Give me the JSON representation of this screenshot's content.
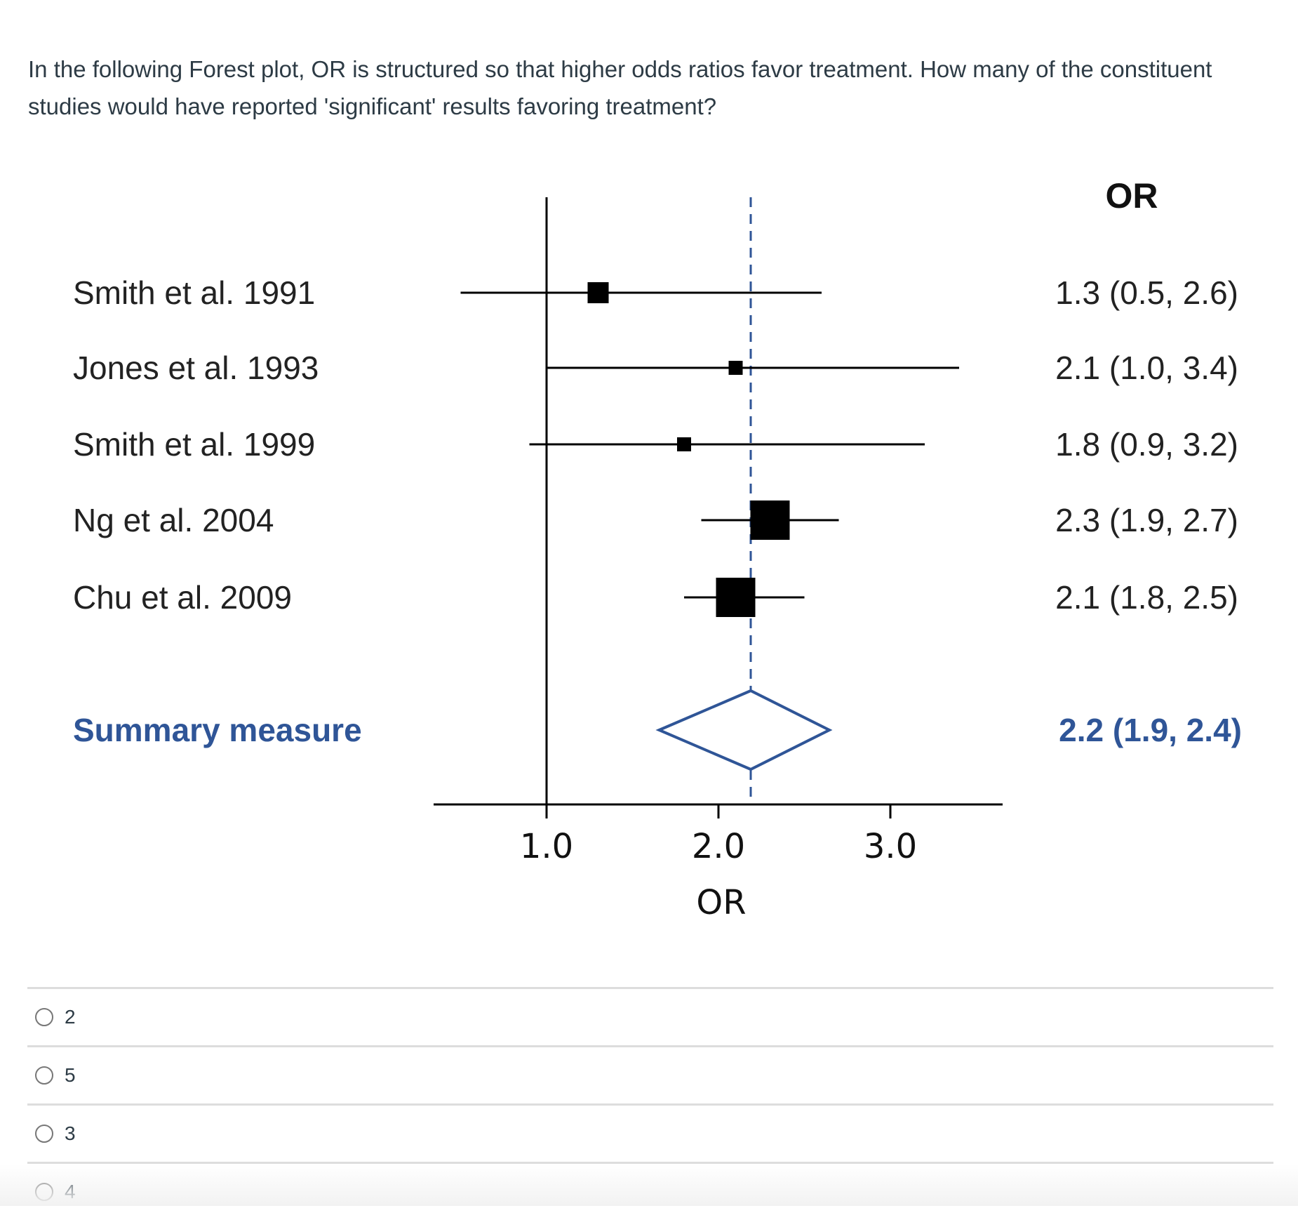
{
  "question": "In the following Forest plot, OR is structured so that higher odds ratios favor treatment. How many of the constituent studies would have reported 'significant' results favoring treatment?",
  "chart_data": {
    "type": "forest",
    "column_header": "OR",
    "xlabel": "OR",
    "xticks": [
      "1.0",
      "2.0",
      "3.0"
    ],
    "xtick_values": [
      1.0,
      2.0,
      3.0
    ],
    "null_line": 1.0,
    "studies": [
      {
        "name": "Smith et al. 1991",
        "or": 1.3,
        "lo": 0.5,
        "hi": 2.6,
        "label": "1.3 (0.5, 2.6)",
        "weight": "medium"
      },
      {
        "name": "Jones et al. 1993",
        "or": 2.1,
        "lo": 1.0,
        "hi": 3.4,
        "label": "2.1 (1.0, 3.4)",
        "weight": "small"
      },
      {
        "name": "Smith et al. 1999",
        "or": 1.8,
        "lo": 0.9,
        "hi": 3.2,
        "label": "1.8 (0.9, 3.2)",
        "weight": "small"
      },
      {
        "name": "Ng et al. 2004",
        "or": 2.3,
        "lo": 1.9,
        "hi": 2.7,
        "label": "2.3 (1.9, 2.7)",
        "weight": "large"
      },
      {
        "name": "Chu et al. 2009",
        "or": 2.1,
        "lo": 1.8,
        "hi": 2.5,
        "label": "2.1 (1.8, 2.5)",
        "weight": "large"
      }
    ],
    "summary": {
      "name": "Summary measure",
      "or": 2.2,
      "lo": 1.9,
      "hi": 2.4,
      "label": "2.2 (1.9, 2.4)"
    },
    "colors": {
      "summary": "#2f5597",
      "marks": "#000000"
    }
  },
  "options": [
    "2",
    "5",
    "3",
    "4"
  ]
}
